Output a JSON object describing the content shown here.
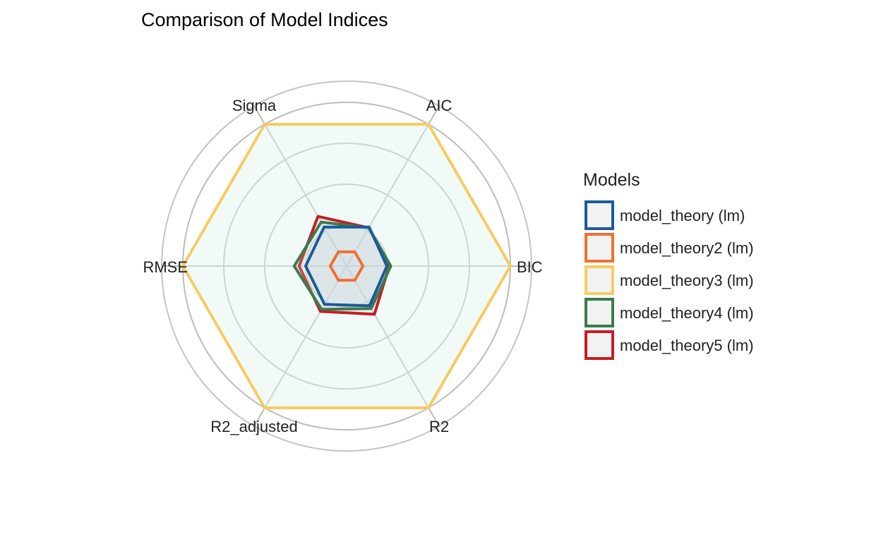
{
  "chart_data": {
    "type": "radar",
    "title": "Comparison of Model Indices",
    "axes": [
      "AIC",
      "BIC",
      "R2",
      "R2_adjusted",
      "RMSE",
      "Sigma"
    ],
    "rmax": 1.0,
    "grid": true,
    "legend": {
      "title": "Models",
      "position": "right"
    },
    "series": [
      {
        "name": "model_theory (lm)",
        "color": "#1a5a99",
        "values": [
          0.275,
          0.246,
          0.28,
          0.27,
          0.25,
          0.275
        ]
      },
      {
        "name": "model_theory2 (lm)",
        "color": "#f07030",
        "values": [
          0.1,
          0.1,
          0.1,
          0.1,
          0.1,
          0.1
        ]
      },
      {
        "name": "model_theory3 (lm)",
        "color": "#f6cb60",
        "values": [
          1.0,
          1.0,
          1.0,
          1.0,
          1.0,
          1.0
        ]
      },
      {
        "name": "model_theory4 (lm)",
        "color": "#3a7a4f",
        "values": [
          0.27,
          0.27,
          0.3,
          0.305,
          0.32,
          0.31
        ]
      },
      {
        "name": "model_theory5 (lm)",
        "color": "#c41d25",
        "values": [
          0.27,
          0.26,
          0.34,
          0.32,
          0.29,
          0.35
        ]
      }
    ]
  }
}
